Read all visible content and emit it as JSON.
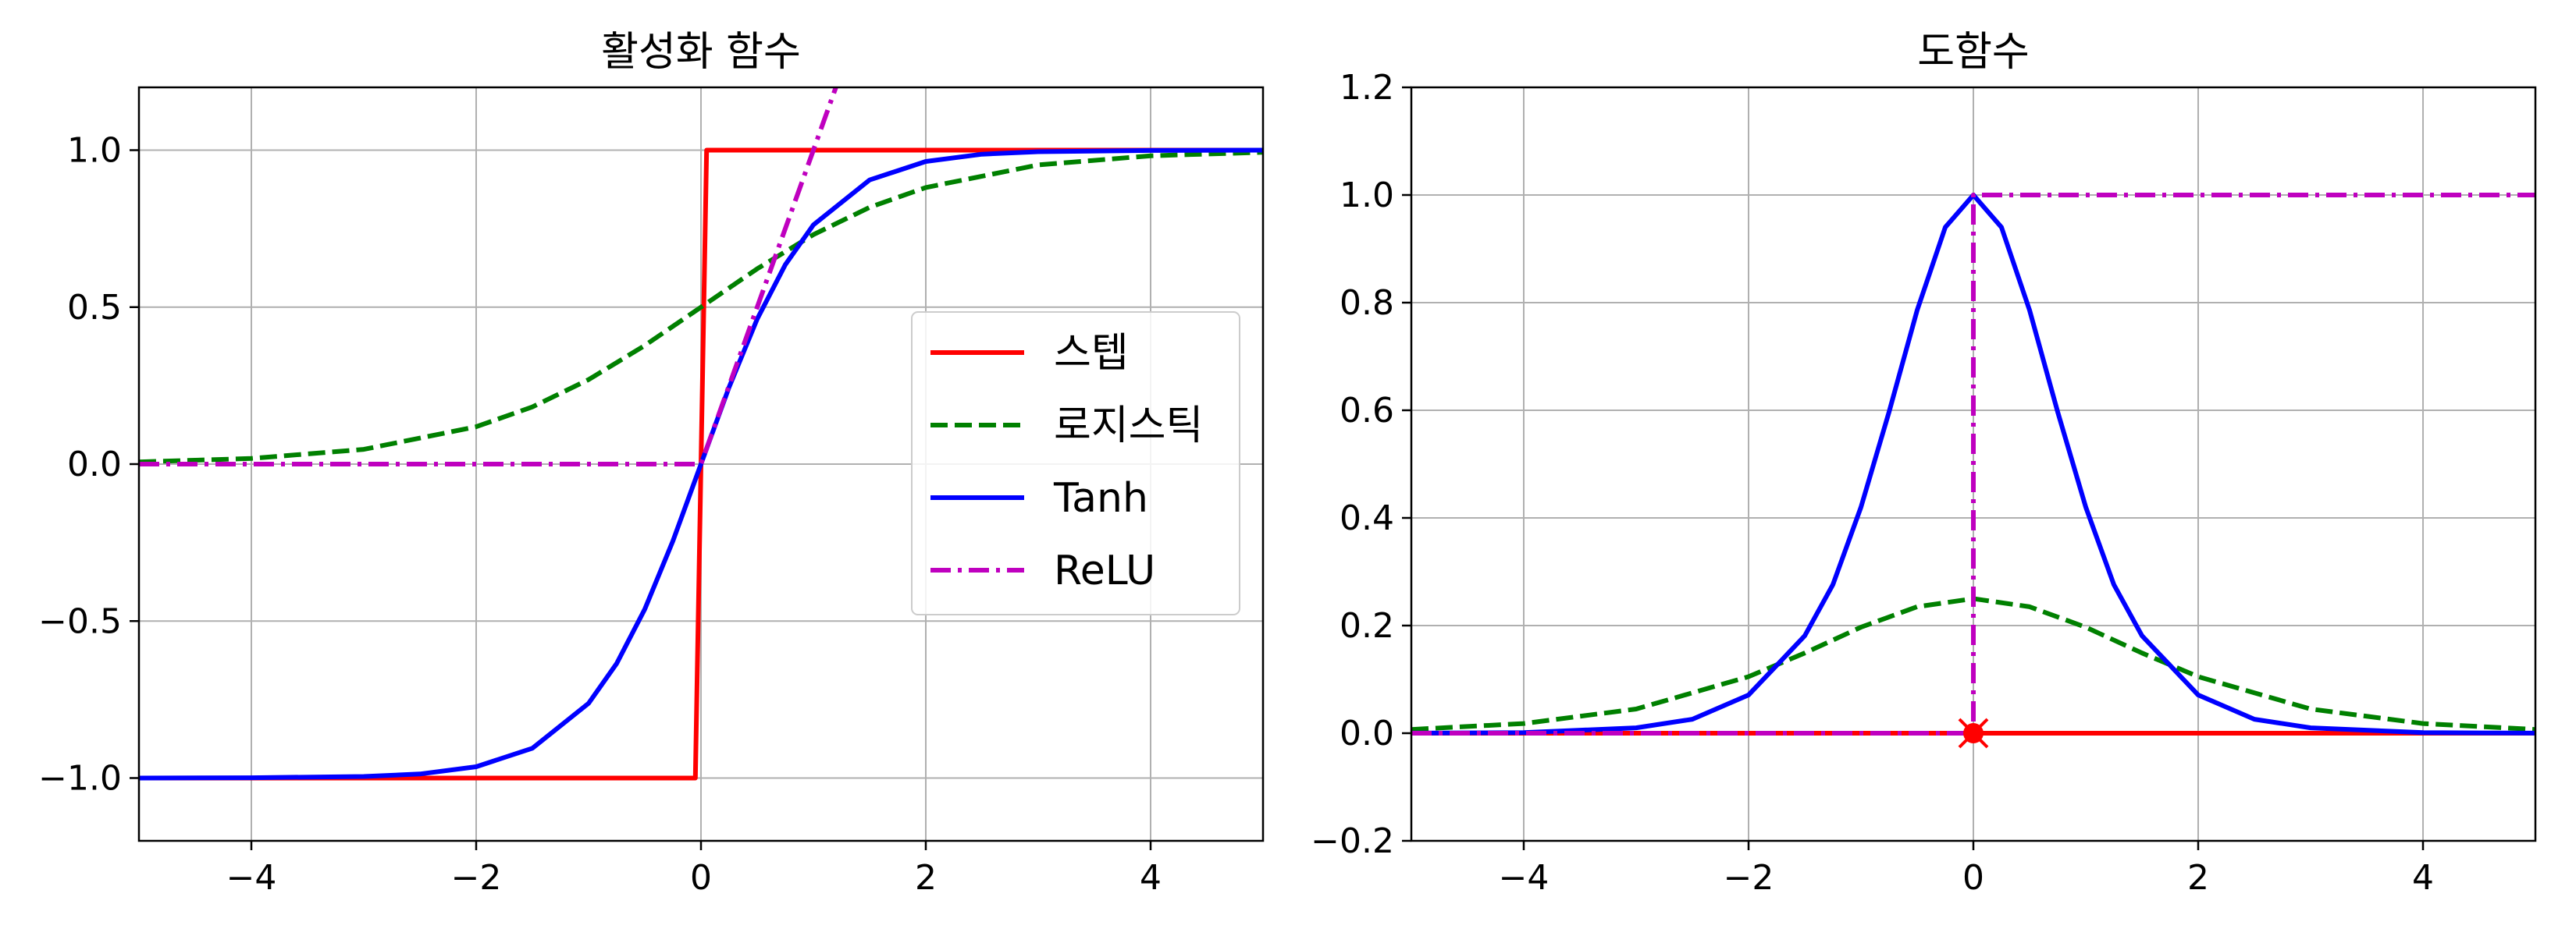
{
  "chart_data": [
    {
      "type": "line",
      "title": "활성화 함수",
      "xlabel": "",
      "ylabel": "",
      "xlim": [
        -5,
        5
      ],
      "ylim": [
        -1.2,
        1.2
      ],
      "xticks": [
        -4,
        -2,
        0,
        2,
        4
      ],
      "xtick_labels": [
        "−4",
        "−2",
        "0",
        "2",
        "4"
      ],
      "yticks": [
        -1.0,
        -0.5,
        0.0,
        0.5,
        1.0
      ],
      "ytick_labels": [
        "−1.0",
        "−0.5",
        "0.0",
        "0.5",
        "1.0"
      ],
      "grid": true,
      "legend": {
        "position": "center-right",
        "entries": [
          "스텝",
          "로지스틱",
          "Tanh",
          "ReLU"
        ]
      },
      "series": [
        {
          "name": "스텝",
          "color": "#ff0000",
          "style": "solid",
          "x": [
            -5,
            -0.05,
            0.05,
            5
          ],
          "y": [
            -1,
            -1,
            1,
            1
          ]
        },
        {
          "name": "로지스틱",
          "color": "#008000",
          "style": "dashed",
          "x": [
            -5,
            -4,
            -3,
            -2,
            -1.5,
            -1,
            -0.5,
            0,
            0.5,
            1,
            1.5,
            2,
            3,
            4,
            5
          ],
          "y": [
            0.007,
            0.018,
            0.047,
            0.119,
            0.182,
            0.269,
            0.378,
            0.5,
            0.622,
            0.731,
            0.818,
            0.881,
            0.953,
            0.982,
            0.993
          ]
        },
        {
          "name": "Tanh",
          "color": "#0000ff",
          "style": "solid",
          "x": [
            -5,
            -4,
            -3,
            -2.5,
            -2,
            -1.5,
            -1,
            -0.75,
            -0.5,
            -0.25,
            0,
            0.25,
            0.5,
            0.75,
            1,
            1.5,
            2,
            2.5,
            3,
            4,
            5
          ],
          "y": [
            -1.0,
            -0.999,
            -0.995,
            -0.987,
            -0.964,
            -0.905,
            -0.762,
            -0.635,
            -0.462,
            -0.245,
            0.0,
            0.245,
            0.462,
            0.635,
            0.762,
            0.905,
            0.964,
            0.987,
            0.995,
            0.999,
            1.0
          ]
        },
        {
          "name": "ReLU",
          "color": "#bf00bf",
          "style": "dashdot",
          "x": [
            -5,
            0,
            1.2
          ],
          "y": [
            0,
            0,
            1.2
          ]
        }
      ]
    },
    {
      "type": "line",
      "title": "도함수",
      "xlabel": "",
      "ylabel": "",
      "xlim": [
        -5,
        5
      ],
      "ylim": [
        -0.2,
        1.2
      ],
      "xticks": [
        -4,
        -2,
        0,
        2,
        4
      ],
      "xtick_labels": [
        "−4",
        "−2",
        "0",
        "2",
        "4"
      ],
      "yticks": [
        -0.2,
        0.0,
        0.2,
        0.4,
        0.6,
        0.8,
        1.0,
        1.2
      ],
      "ytick_labels": [
        "−0.2",
        "0.0",
        "0.2",
        "0.4",
        "0.6",
        "0.8",
        "1.0",
        "1.2"
      ],
      "grid": true,
      "series": [
        {
          "color": "#ff0000",
          "style": "solid",
          "x": [
            -5,
            5
          ],
          "y": [
            0,
            0
          ]
        },
        {
          "color": "#008000",
          "style": "dashed",
          "x": [
            -5,
            -4,
            -3,
            -2,
            -1.5,
            -1,
            -0.5,
            0,
            0.5,
            1,
            1.5,
            2,
            3,
            4,
            5
          ],
          "y": [
            0.007,
            0.018,
            0.045,
            0.105,
            0.149,
            0.197,
            0.235,
            0.25,
            0.235,
            0.197,
            0.149,
            0.105,
            0.045,
            0.018,
            0.007
          ]
        },
        {
          "color": "#0000ff",
          "style": "solid",
          "x": [
            -5,
            -4,
            -3,
            -2.5,
            -2,
            -1.5,
            -1.25,
            -1,
            -0.75,
            -0.5,
            -0.25,
            0,
            0.25,
            0.5,
            0.75,
            1,
            1.25,
            1.5,
            2,
            2.5,
            3,
            4,
            5
          ],
          "y": [
            0.0002,
            0.001,
            0.01,
            0.026,
            0.071,
            0.181,
            0.276,
            0.42,
            0.597,
            0.786,
            0.94,
            1.0,
            0.94,
            0.786,
            0.597,
            0.42,
            0.276,
            0.181,
            0.071,
            0.026,
            0.01,
            0.001,
            0.0002
          ]
        },
        {
          "color": "#bf00bf",
          "style": "dashdot",
          "x": [
            -5,
            0,
            0,
            5
          ],
          "y": [
            0,
            0,
            1,
            1
          ]
        }
      ],
      "markers": [
        {
          "x": 0,
          "y": 0,
          "shape": "o",
          "color": "#ff0000"
        },
        {
          "x": 0,
          "y": 0,
          "shape": "x",
          "color": "#ff0000"
        }
      ]
    }
  ]
}
